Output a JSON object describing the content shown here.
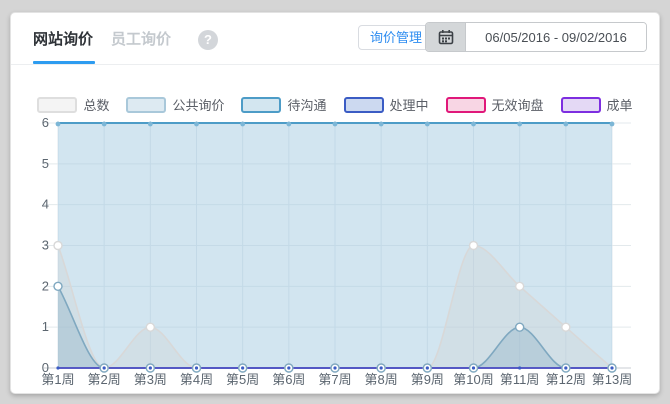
{
  "page": {
    "background": "#d5d5d5",
    "card_background": "#ffffff",
    "accent_blue": "#2d9cf0"
  },
  "header": {
    "tabs": [
      {
        "label": "网站询价",
        "active": true
      },
      {
        "label": "员工询价",
        "active": false
      }
    ],
    "help_icon": "question-mark-icon",
    "manage_button_label": "询价管理",
    "date_range_value": "06/05/2016 - 09/02/2016"
  },
  "legend": {
    "items": [
      {
        "label": "总数",
        "border": "#dedede",
        "fill": "#f4f4f4"
      },
      {
        "label": "公共询价",
        "border": "#a9c8da",
        "fill": "#ddeaf2"
      },
      {
        "label": "待沟通",
        "border": "#4d9cc7",
        "fill": "#d3e6f0"
      },
      {
        "label": "处理中",
        "border": "#3b5cc4",
        "fill": "#ccd9f0"
      },
      {
        "label": "无效询盘",
        "border": "#e0187a",
        "fill": "#f8d6e4"
      },
      {
        "label": "成单",
        "border": "#7d2ee0",
        "fill": "#e4d9f5"
      }
    ]
  },
  "chart_data": {
    "type": "area",
    "title": "",
    "xlabel": "",
    "ylabel": "",
    "categories": [
      "第1周",
      "第2周",
      "第3周",
      "第4周",
      "第5周",
      "第6周",
      "第7周",
      "第8周",
      "第9周",
      "第10周",
      "第11周",
      "第12周",
      "第13周"
    ],
    "ylim": [
      0,
      6
    ],
    "yticks": [
      0,
      1,
      2,
      3,
      4,
      5,
      6
    ],
    "grid": true,
    "legend_position": "top",
    "series": [
      {
        "name": "总数",
        "values": [
          3,
          0,
          1,
          0,
          0,
          0,
          0,
          0,
          0,
          3,
          2,
          1,
          0
        ],
        "color": "#d8d8d8",
        "fill": "rgba(210,210,210,0.30)",
        "marker": "hollow",
        "z": 1
      },
      {
        "name": "公共询价",
        "values": [
          6,
          6,
          6,
          6,
          6,
          6,
          6,
          6,
          6,
          6,
          6,
          6,
          6
        ],
        "color": "#4d9cc7",
        "fill": "rgba(168,206,226,0.52)",
        "marker": "dot",
        "z": 0
      },
      {
        "name": "待沟通",
        "values": [
          2,
          0,
          0,
          0,
          0,
          0,
          0,
          0,
          0,
          0,
          1,
          0,
          0
        ],
        "color": "#7fa8c0",
        "fill": "rgba(127,168,192,0.30)",
        "marker": "hollow",
        "z": 2
      },
      {
        "name": "处理中",
        "values": [
          0,
          0,
          0,
          0,
          0,
          0,
          0,
          0,
          0,
          0,
          0,
          0,
          0
        ],
        "color": "#3b5cc4",
        "fill": "none",
        "marker": "tiny",
        "z": 5
      },
      {
        "name": "无效询盘",
        "values": [
          0,
          0,
          0,
          0,
          0,
          0,
          0,
          0,
          0,
          0,
          0,
          0,
          0
        ],
        "color": "#e0187a",
        "fill": "none",
        "marker": "none",
        "z": 3
      },
      {
        "name": "成单",
        "values": [
          0,
          0,
          0,
          0,
          0,
          0,
          0,
          0,
          0,
          0,
          0,
          0,
          0
        ],
        "color": "#7d2ee0",
        "fill": "none",
        "marker": "none",
        "z": 4
      }
    ]
  }
}
